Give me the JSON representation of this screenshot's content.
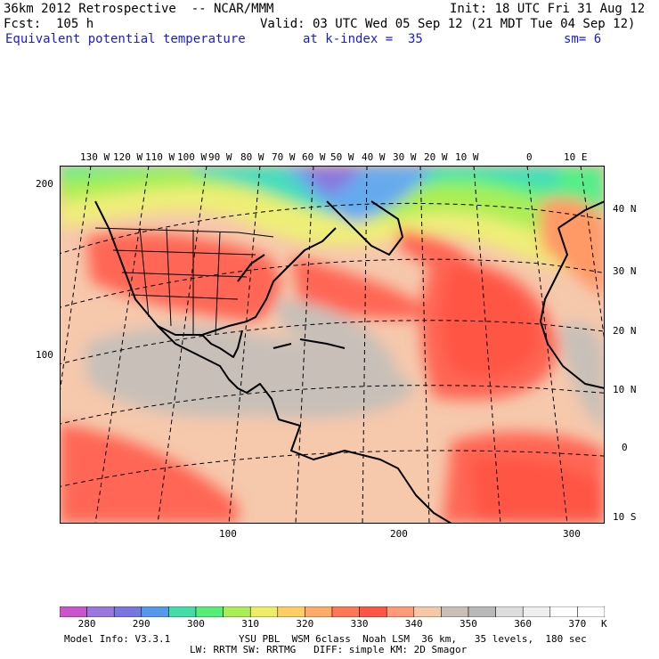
{
  "header": {
    "line1_left": "36km 2012 Retrospective  -- NCAR/MMM",
    "line1_right": "Init: 18 UTC Fri 31 Aug 12",
    "line2_left": "Fcst:  105 h",
    "line2_right": "Valid: 03 UTC Wed 05 Sep 12 (21 MDT Tue 04 Sep 12)",
    "field": "Equivalent potential temperature",
    "level": "at k-index =  35",
    "smooth": "sm= 6"
  },
  "map": {
    "top_lon_labels": [
      "130 W",
      "120 W",
      "110 W",
      "100 W",
      "90 W",
      "80 W",
      "70 W",
      "60 W",
      "50 W",
      "40 W",
      "30 W",
      "20 W",
      "10 W",
      "0",
      "10 E"
    ],
    "right_lat_labels": [
      "40 N",
      "30 N",
      "20 N",
      "10 N",
      "0",
      "10 S"
    ],
    "left_y_labels": [
      "200",
      "100"
    ],
    "bottom_x_labels": [
      "100",
      "200",
      "300"
    ]
  },
  "colorbar": {
    "labels": [
      "280",
      "290",
      "300",
      "310",
      "320",
      "330",
      "340",
      "350",
      "360",
      "370"
    ],
    "unit": "K",
    "colors": [
      "#cc55cc",
      "#9977dd",
      "#7777e0",
      "#5599ee",
      "#44ddaa",
      "#55ee77",
      "#aaee55",
      "#eeee66",
      "#ffcc66",
      "#ffaa66",
      "#ff7755",
      "#ff5544",
      "#ff9977",
      "#f5c8a8",
      "#c8c0b8",
      "#b8b8b8",
      "#dddddd",
      "#eeeeee",
      "#ffffff",
      "#ffffff"
    ]
  },
  "footer": {
    "model_info": "Model Info: V3.3.1",
    "physics_line1": "YSU PBL  WSM 6class  Noah LSM  36 km,   35 levels,  180 sec",
    "physics_line2": "LW: RRTM SW: RRTMG   DIFF: simple KM: 2D Smagor"
  }
}
